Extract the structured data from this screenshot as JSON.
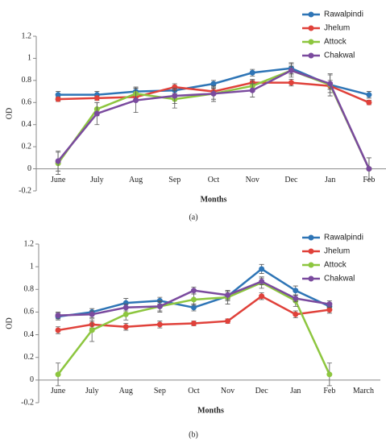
{
  "chart_data": [
    {
      "type": "line",
      "caption": "(a)",
      "xlabel": "Months",
      "ylabel": "OD",
      "categories": [
        "June",
        "July",
        "Aug",
        "Sep",
        "Oct",
        "Nov",
        "Dec",
        "Jan",
        "Feb"
      ],
      "ylim": [
        -0.2,
        1.2
      ],
      "yticks": [
        -0.2,
        0,
        0.2,
        0.4,
        0.6,
        0.8,
        1,
        1.2
      ],
      "legend": "top-right",
      "series": [
        {
          "name": "Rawalpindi",
          "color": "#2e75b6",
          "values": [
            0.67,
            0.67,
            0.7,
            0.71,
            0.77,
            0.87,
            0.91,
            0.76,
            0.67
          ],
          "errors": [
            0.03,
            0.03,
            0.03,
            0.03,
            0.03,
            0.03,
            0.05,
            0.04,
            0.03
          ]
        },
        {
          "name": "Jhelum",
          "color": "#e0413a",
          "values": [
            0.63,
            0.64,
            0.65,
            0.74,
            0.7,
            0.78,
            0.78,
            0.75,
            0.6
          ],
          "errors": [
            0.02,
            0.02,
            0.03,
            0.03,
            0.03,
            0.03,
            0.03,
            0.03,
            0.02
          ]
        },
        {
          "name": "Attock",
          "color": "#8dc63f",
          "values": [
            0.05,
            0.54,
            0.68,
            0.63,
            0.68,
            0.75,
            0.89,
            0.76,
            0
          ],
          "errors": [
            0.1,
            0.06,
            0.06,
            0.08,
            0.07,
            0.05,
            0.06,
            0.1,
            0.1
          ]
        },
        {
          "name": "Chakwal",
          "color": "#7a4a9e",
          "values": [
            0.07,
            0.5,
            0.62,
            0.66,
            0.68,
            0.71,
            0.89,
            0.77,
            0
          ],
          "errors": [
            0.09,
            0.1,
            0.11,
            0.07,
            0.05,
            0.06,
            0.04,
            0.08,
            0.1
          ]
        }
      ]
    },
    {
      "type": "line",
      "caption": "(b)",
      "xlabel": "Months",
      "ylabel": "OD",
      "categories": [
        "June",
        "July",
        "Aug",
        "Sep",
        "Oct",
        "Nov",
        "Dec",
        "Jan",
        "Feb",
        "March"
      ],
      "ylim": [
        -0.2,
        1.2
      ],
      "yticks": [
        -0.2,
        0,
        0.2,
        0.4,
        0.6,
        0.8,
        1,
        1.2
      ],
      "legend": "top-right",
      "series": [
        {
          "name": "Rawalpindi",
          "color": "#2e75b6",
          "values": [
            0.56,
            0.6,
            0.68,
            0.7,
            0.64,
            0.74,
            0.98,
            0.79,
            0.65,
            null
          ],
          "errors": [
            0.03,
            0.03,
            0.04,
            0.03,
            0.03,
            0.04,
            0.04,
            0.04,
            0.03,
            null
          ]
        },
        {
          "name": "Jhelum",
          "color": "#e0413a",
          "values": [
            0.44,
            0.49,
            0.47,
            0.49,
            0.5,
            0.52,
            0.74,
            0.58,
            0.62,
            null
          ],
          "errors": [
            0.03,
            0.03,
            0.03,
            0.03,
            0.02,
            0.02,
            0.03,
            0.03,
            0.03,
            null
          ]
        },
        {
          "name": "Attock",
          "color": "#8dc63f",
          "values": [
            0.05,
            0.44,
            0.58,
            0.65,
            0.71,
            0.73,
            0.86,
            0.7,
            0.05,
            null
          ],
          "errors": [
            0.1,
            0.1,
            0.05,
            0.05,
            0.05,
            0.06,
            0.05,
            0.05,
            0.1,
            null
          ]
        },
        {
          "name": "Chakwal",
          "color": "#7a4a9e",
          "values": [
            0.57,
            0.58,
            0.64,
            0.65,
            0.79,
            0.75,
            0.87,
            0.72,
            0.67,
            null
          ],
          "errors": [
            0.03,
            0.03,
            0.03,
            0.04,
            0.03,
            0.04,
            0.03,
            0.03,
            0.03,
            null
          ]
        }
      ]
    }
  ]
}
